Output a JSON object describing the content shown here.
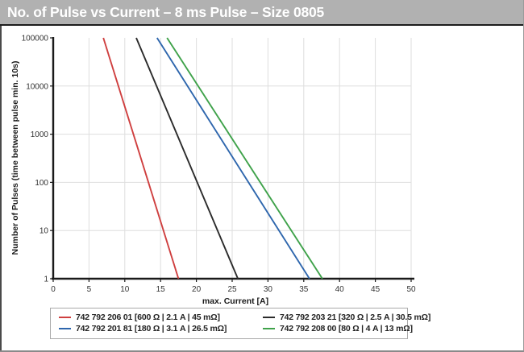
{
  "chart_data": {
    "type": "line",
    "title": "No. of Pulse vs Current – 8 ms Pulse – Size 0805",
    "xlabel": "max. Current [A]",
    "ylabel": "Number of Pulses (time between pulse min. 10s)",
    "xlim": [
      0,
      50
    ],
    "x_ticks": [
      0,
      5,
      10,
      15,
      20,
      25,
      30,
      35,
      40,
      45,
      50
    ],
    "ylim": [
      1,
      100000
    ],
    "y_scale": "log",
    "y_ticks": [
      1,
      10,
      100,
      1000,
      10000,
      100000
    ],
    "grid": true,
    "legend_position": "bottom",
    "colors": {
      "axis": "#1a1a1a",
      "grid": "#dedede",
      "titlebar_bg": "#b1b1b1",
      "titlebar_text": "#ffffff"
    },
    "series": [
      {
        "name": "742 792 206 01 [600 Ω | 2.1 A | 45 mΩ]",
        "color": "#cf3f3f",
        "points": [
          [
            7.0,
            100000
          ],
          [
            17.5,
            1
          ]
        ]
      },
      {
        "name": "742 792 203 21 [320 Ω | 2.5 A | 30.5 mΩ]",
        "color": "#2b2b2b",
        "points": [
          [
            11.6,
            100000
          ],
          [
            25.8,
            1
          ]
        ]
      },
      {
        "name": "742 792 201 81 [180 Ω | 3.1 A | 26.5 mΩ]",
        "color": "#2e66ad",
        "points": [
          [
            14.5,
            100000
          ],
          [
            35.8,
            1
          ]
        ]
      },
      {
        "name": "742 792 208 00 [80 Ω | 4 A | 13 mΩ]",
        "color": "#3fa24a",
        "points": [
          [
            15.9,
            100000
          ],
          [
            37.6,
            1
          ]
        ]
      }
    ]
  }
}
